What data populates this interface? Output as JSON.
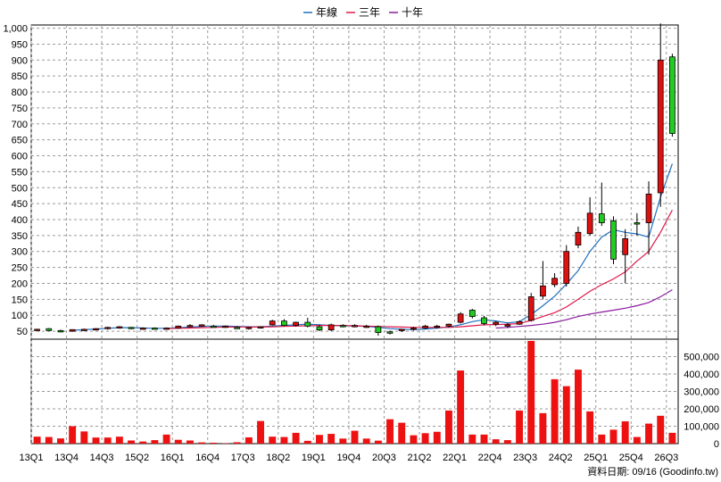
{
  "legend": [
    {
      "label": "年線",
      "color": "#1f6fbf"
    },
    {
      "label": "三年",
      "color": "#e0184a"
    },
    {
      "label": "十年",
      "color": "#8b1a9e"
    }
  ],
  "footer": {
    "date_text": "資料日期: 09/16  (Goodinfo.tw)"
  },
  "chart_data": {
    "type": "candlestick",
    "title": "",
    "x_tick_labels": [
      "13Q1",
      "13Q4",
      "14Q3",
      "15Q2",
      "16Q1",
      "16Q4",
      "17Q3",
      "18Q2",
      "19Q1",
      "19Q4",
      "20Q3",
      "21Q2",
      "22Q1",
      "22Q4",
      "23Q3",
      "24Q2",
      "25Q1",
      "25Q4",
      "26Q3"
    ],
    "price_axis": {
      "ticks": [
        "50",
        "100",
        "150",
        "200",
        "250",
        "300",
        "350",
        "400",
        "450",
        "500",
        "550",
        "600",
        "650",
        "700",
        "750",
        "800",
        "850",
        "900",
        "950",
        "1,000"
      ],
      "ylim": [
        25,
        1010
      ]
    },
    "volume_axis": {
      "ticks": [
        "0",
        "100,000",
        "200,000",
        "300,000",
        "400,000",
        "500,000"
      ],
      "ylim": [
        0,
        600000
      ]
    },
    "quarters": [
      "13Q1",
      "13Q2",
      "13Q3",
      "13Q4",
      "14Q1",
      "14Q2",
      "14Q3",
      "14Q4",
      "15Q1",
      "15Q2",
      "15Q3",
      "15Q4",
      "16Q1",
      "16Q2",
      "16Q3",
      "16Q4",
      "17Q1",
      "17Q2",
      "17Q3",
      "17Q4",
      "18Q1",
      "18Q2",
      "18Q3",
      "18Q4",
      "19Q1",
      "19Q2",
      "19Q3",
      "19Q4",
      "20Q1",
      "20Q2",
      "20Q3",
      "20Q4",
      "21Q1",
      "21Q2",
      "21Q3",
      "21Q4",
      "22Q1",
      "22Q2",
      "22Q3",
      "22Q4",
      "23Q1",
      "23Q2",
      "23Q3",
      "23Q4",
      "24Q1",
      "24Q2",
      "24Q3",
      "24Q4",
      "25Q1",
      "25Q2",
      "25Q3",
      "25Q4",
      "26Q1",
      "26Q2",
      "26Q3"
    ],
    "candles": [
      [
        55,
        58,
        53,
        56
      ],
      [
        58,
        60,
        50,
        52
      ],
      [
        52,
        55,
        46,
        50
      ],
      [
        50,
        56,
        48,
        55
      ],
      [
        55,
        58,
        52,
        56
      ],
      [
        56,
        60,
        54,
        58
      ],
      [
        58,
        64,
        55,
        62
      ],
      [
        62,
        66,
        58,
        64
      ],
      [
        62,
        64,
        56,
        58
      ],
      [
        58,
        62,
        55,
        60
      ],
      [
        60,
        62,
        56,
        58
      ],
      [
        58,
        62,
        55,
        60
      ],
      [
        60,
        68,
        58,
        66
      ],
      [
        66,
        72,
        62,
        68
      ],
      [
        68,
        72,
        64,
        70
      ],
      [
        66,
        70,
        62,
        64
      ],
      [
        64,
        68,
        60,
        66
      ],
      [
        62,
        66,
        58,
        60
      ],
      [
        58,
        64,
        55,
        62
      ],
      [
        60,
        66,
        58,
        64
      ],
      [
        70,
        86,
        68,
        82
      ],
      [
        82,
        88,
        66,
        68
      ],
      [
        68,
        80,
        64,
        78
      ],
      [
        78,
        92,
        62,
        66
      ],
      [
        64,
        70,
        50,
        54
      ],
      [
        54,
        74,
        50,
        70
      ],
      [
        68,
        72,
        62,
        64
      ],
      [
        66,
        72,
        62,
        68
      ],
      [
        64,
        70,
        60,
        66
      ],
      [
        64,
        68,
        36,
        46
      ],
      [
        48,
        52,
        40,
        44
      ],
      [
        52,
        58,
        48,
        56
      ],
      [
        56,
        64,
        52,
        60
      ],
      [
        60,
        70,
        56,
        66
      ],
      [
        62,
        70,
        58,
        66
      ],
      [
        66,
        74,
        62,
        72
      ],
      [
        78,
        110,
        74,
        104
      ],
      [
        116,
        120,
        90,
        96
      ],
      [
        92,
        98,
        68,
        74
      ],
      [
        72,
        82,
        66,
        78
      ],
      [
        68,
        76,
        60,
        70
      ],
      [
        72,
        84,
        70,
        80
      ],
      [
        84,
        170,
        80,
        158
      ],
      [
        160,
        270,
        150,
        192
      ],
      [
        196,
        232,
        188,
        216
      ],
      [
        200,
        320,
        190,
        300
      ],
      [
        320,
        378,
        310,
        360
      ],
      [
        356,
        470,
        350,
        420
      ],
      [
        418,
        516,
        380,
        390
      ],
      [
        396,
        410,
        260,
        276
      ],
      [
        290,
        370,
        200,
        340
      ],
      [
        390,
        420,
        350,
        388
      ],
      [
        390,
        520,
        290,
        480
      ],
      [
        484,
        1015,
        440,
        900
      ],
      [
        910,
        920,
        660,
        670
      ]
    ],
    "volumes": [
      40000,
      38000,
      30000,
      100000,
      70000,
      35000,
      35000,
      40000,
      18000,
      12000,
      20000,
      52000,
      22000,
      18000,
      7000,
      5000,
      2000,
      8000,
      36000,
      130000,
      40000,
      38000,
      62000,
      16000,
      50000,
      56000,
      29000,
      74000,
      29000,
      17000,
      140000,
      120000,
      48000,
      60000,
      68000,
      190000,
      420000,
      52000,
      52000,
      25000,
      20000,
      190000,
      590000,
      175000,
      370000,
      330000,
      425000,
      185000,
      52000,
      80000,
      128000,
      38000,
      115000,
      160000,
      62000
    ],
    "series": [
      {
        "name": "年線",
        "values": [
          null,
          null,
          null,
          53,
          55,
          57,
          59,
          61,
          61,
          60,
          59,
          59,
          61,
          63,
          65,
          66,
          66,
          65,
          64,
          64,
          66,
          68,
          70,
          72,
          70,
          68,
          67,
          66,
          65,
          62,
          58,
          56,
          55,
          57,
          60,
          63,
          70,
          80,
          86,
          82,
          76,
          80,
          102,
          130,
          160,
          198,
          240,
          300,
          345,
          368,
          360,
          355,
          345,
          470,
          575
        ]
      },
      {
        "name": "三年",
        "values": [
          null,
          null,
          null,
          null,
          null,
          null,
          null,
          null,
          null,
          null,
          null,
          58,
          59,
          60,
          61,
          62,
          63,
          63,
          63,
          63,
          64,
          65,
          66,
          67,
          68,
          68,
          68,
          67,
          66,
          65,
          64,
          63,
          62,
          62,
          62,
          62,
          64,
          67,
          70,
          71,
          72,
          74,
          84,
          96,
          108,
          126,
          150,
          175,
          196,
          214,
          236,
          270,
          300,
          360,
          430
        ]
      },
      {
        "name": "十年",
        "values": [
          null,
          null,
          null,
          null,
          null,
          null,
          null,
          null,
          null,
          null,
          null,
          null,
          null,
          null,
          null,
          null,
          null,
          null,
          null,
          null,
          null,
          null,
          null,
          null,
          null,
          null,
          null,
          null,
          null,
          null,
          null,
          null,
          null,
          null,
          null,
          null,
          null,
          null,
          null,
          60,
          62,
          65,
          68,
          72,
          78,
          86,
          96,
          104,
          110,
          116,
          122,
          130,
          140,
          158,
          180
        ]
      }
    ]
  }
}
